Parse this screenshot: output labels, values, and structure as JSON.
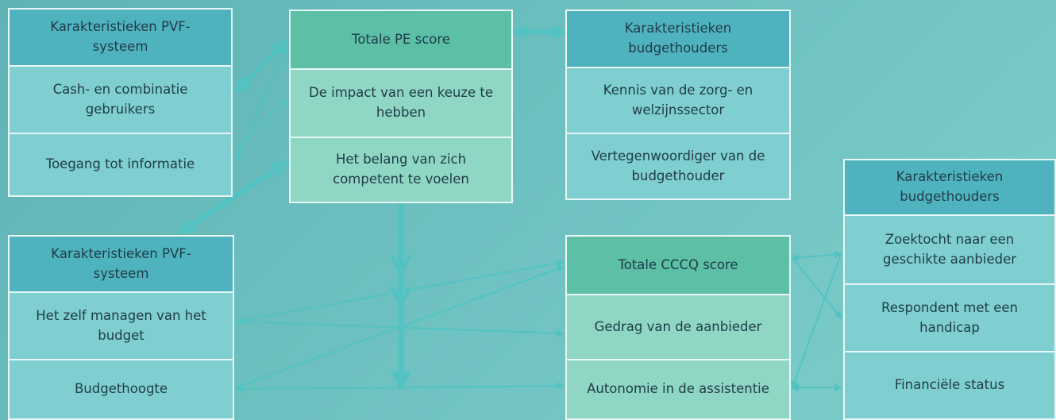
{
  "boxes": [
    {
      "header": "Karakteristieken PVF-systeem",
      "items": [
        "Cash- en combinatie gebruikers",
        "Toegang tot informatie"
      ]
    },
    {
      "header": "Totale PE score",
      "items": [
        "De impact van een keuze te hebben",
        "Het belang van zich competent te voelen"
      ]
    },
    {
      "header": "Karakteristieken budgethouders",
      "items": [
        "Kennis van de zorg- en welzijnssector",
        "Vertegenwoordiger van de budgethouder"
      ]
    },
    {
      "header": "Karakteristieken PVF-systeem",
      "items": [
        "Het zelf managen van het budget",
        "Budgethoogte"
      ]
    },
    {
      "header": "Totale CCCQ score",
      "items": [
        "Gedrag van de aanbieder",
        "Autonomie in de assistentie"
      ]
    },
    {
      "header": "Karakteristieken budgethouders",
      "items": [
        "Zoektocht naar een geschikte aanbieder",
        "Respondent met een handicap",
        "Financiële status"
      ]
    }
  ]
}
